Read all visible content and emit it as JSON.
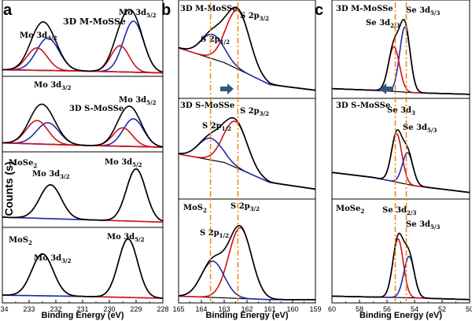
{
  "chart_data": {
    "type": "line",
    "y_label": "Counts (s)",
    "panels": [
      {
        "letter": "a",
        "xlabel": "Binding Energy (eV)",
        "xlim": [
          234,
          228
        ],
        "ticks": [
          "234",
          "233",
          "232",
          "231",
          "230",
          "229",
          "228"
        ],
        "tick_values": [
          234,
          233,
          232,
          231,
          230,
          229,
          228
        ],
        "subplots": [
          {
            "sample": "3D M-MoSSe",
            "ylim": [
              0,
              1.15
            ],
            "baseline": [
              [
                234,
                0.08
              ],
              [
                231,
                0.06
              ],
              [
                228,
                0.03
              ]
            ],
            "peaks": [
              {
                "name": "Mo 3d5/2 blue",
                "color": "#1f2ca8",
                "center": 229.1,
                "amp": 0.82,
                "sigma": 0.38
              },
              {
                "name": "Mo 3d3/2 blue",
                "color": "#1f2ca8",
                "center": 232.3,
                "amp": 0.52,
                "sigma": 0.42
              },
              {
                "name": "Mo 3d5/2 red",
                "color": "#d0101a",
                "center": 229.6,
                "amp": 0.42,
                "sigma": 0.34
              },
              {
                "name": "Mo 3d3/2 red",
                "color": "#d0101a",
                "center": 232.7,
                "amp": 0.36,
                "sigma": 0.38
              }
            ]
          },
          {
            "sample": "3D S-MoSSe",
            "ylim": [
              0,
              1.15
            ],
            "baseline": [
              [
                234,
                0.12
              ],
              [
                231,
                0.08
              ],
              [
                228,
                0.05
              ]
            ],
            "peaks": [
              {
                "name": "Mo 3d5/2 blue",
                "color": "#1f2ca8",
                "center": 229.1,
                "amp": 0.45,
                "sigma": 0.38
              },
              {
                "name": "Mo 3d3/2 blue",
                "color": "#1f2ca8",
                "center": 232.3,
                "amp": 0.35,
                "sigma": 0.42
              },
              {
                "name": "Mo 3d5/2 red",
                "color": "#d0101a",
                "center": 229.5,
                "amp": 0.3,
                "sigma": 0.36
              },
              {
                "name": "Mo 3d3/2 red",
                "color": "#d0101a",
                "center": 232.7,
                "amp": 0.38,
                "sigma": 0.4
              }
            ]
          },
          {
            "sample": "MoSe2",
            "ylim": [
              0,
              1.15
            ],
            "baseline": [
              [
                234,
                0.14
              ],
              [
                231,
                0.1
              ],
              [
                228,
                0.06
              ]
            ],
            "peaks": [
              {
                "name": "Mo 3d5/2",
                "color": "#1f2ca8",
                "center": 229.0,
                "amp": 0.85,
                "sigma": 0.36
              },
              {
                "name": "Mo 3d3/2",
                "color": "#d0101a",
                "center": 232.2,
                "amp": 0.55,
                "sigma": 0.4
              }
            ]
          },
          {
            "sample": "MoS2",
            "ylim": [
              0,
              1.15
            ],
            "baseline": [
              [
                234,
                0.1
              ],
              [
                231,
                0.08
              ],
              [
                228,
                0.05
              ]
            ],
            "peaks": [
              {
                "name": "Mo 3d5/2",
                "color": "#1f2ca8",
                "center": 229.3,
                "amp": 0.95,
                "sigma": 0.36
              },
              {
                "name": "Mo 3d3/2",
                "color": "#d0101a",
                "center": 232.5,
                "amp": 0.68,
                "sigma": 0.4
              }
            ]
          }
        ]
      },
      {
        "letter": "b",
        "xlabel": "Binding Energy (eV)",
        "xlim": [
          165,
          159
        ],
        "ticks": [
          "165",
          "164",
          "163",
          "162",
          "161",
          "160",
          "159"
        ],
        "tick_values": [
          165,
          164,
          163,
          162,
          161,
          160,
          159
        ],
        "ref_lines": [
          163.6,
          162.4
        ],
        "subplots": [
          {
            "sample": "3D M-MoSSe",
            "ylim": [
              0,
              1.15
            ],
            "baseline": [
              [
                165,
                0.6
              ],
              [
                163,
                0.42
              ],
              [
                161,
                0.15
              ],
              [
                159,
                0.08
              ]
            ],
            "peaks": [
              {
                "name": "S 2p3/2",
                "color": "#d0101a",
                "center": 162.4,
                "amp": 0.72,
                "sigma": 0.52
              },
              {
                "name": "S 2p1/2",
                "color": "#1f2ca8",
                "center": 163.5,
                "amp": 0.3,
                "sigma": 0.5
              }
            ]
          },
          {
            "sample": "3D S-MoSSe",
            "ylim": [
              0,
              1.15
            ],
            "baseline": [
              [
                165,
                0.52
              ],
              [
                163,
                0.42
              ],
              [
                161,
                0.18
              ],
              [
                159,
                0.1
              ]
            ],
            "peaks": [
              {
                "name": "S 2p3/2",
                "color": "#d0101a",
                "center": 162.5,
                "amp": 0.55,
                "sigma": 0.52
              },
              {
                "name": "S 2p1/2",
                "color": "#1f2ca8",
                "center": 163.6,
                "amp": 0.26,
                "sigma": 0.52
              }
            ]
          },
          {
            "sample": "MoS2",
            "ylim": [
              0,
              1.15
            ],
            "baseline": [
              [
                165,
                0.06
              ],
              [
                163,
                0.04
              ],
              [
                161,
                0.02
              ],
              [
                159,
                0.02
              ]
            ],
            "peaks": [
              {
                "name": "S 2p3/2",
                "color": "#d0101a",
                "center": 162.3,
                "amp": 0.82,
                "sigma": 0.5
              },
              {
                "name": "S 2p1/2",
                "color": "#1f2ca8",
                "center": 163.5,
                "amp": 0.42,
                "sigma": 0.5
              }
            ]
          }
        ]
      },
      {
        "letter": "c",
        "xlabel": "Binding Energy (eV)",
        "xlim": [
          60,
          50
        ],
        "ticks": [
          "60",
          "58",
          "56",
          "54",
          "52",
          "50"
        ],
        "tick_values": [
          60,
          58,
          56,
          54,
          52,
          50
        ],
        "ref_lines": [
          55.4,
          54.6
        ],
        "subplots": [
          {
            "sample": "3D M-MoSSe",
            "ylim": [
              0,
              1.15
            ],
            "baseline": [
              [
                60,
                0.1
              ],
              [
                57,
                0.08
              ],
              [
                54,
                0.05
              ],
              [
                50,
                0.03
              ]
            ],
            "peaks": [
              {
                "name": "Se 3d5/2",
                "color": "#1f2ca8",
                "center": 54.7,
                "amp": 0.8,
                "sigma": 0.38
              },
              {
                "name": "Se 3d3/2",
                "color": "#d0101a",
                "center": 55.5,
                "amp": 0.55,
                "sigma": 0.4
              }
            ]
          },
          {
            "sample": "3D S-MoSSe",
            "ylim": [
              0,
              1.15
            ],
            "baseline": [
              [
                60,
                0.3
              ],
              [
                57,
                0.24
              ],
              [
                54,
                0.14
              ],
              [
                50,
                0.06
              ]
            ],
            "peaks": [
              {
                "name": "Se 3d3/2",
                "color": "#d0101a",
                "center": 55.3,
                "amp": 0.58,
                "sigma": 0.38
              },
              {
                "name": "Se 3d5/2",
                "color": "#1f2ca8",
                "center": 54.5,
                "amp": 0.38,
                "sigma": 0.38
              }
            ]
          },
          {
            "sample": "MoSe2",
            "ylim": [
              0,
              1.15
            ],
            "baseline": [
              [
                60,
                0.06
              ],
              [
                57,
                0.05
              ],
              [
                54,
                0.04
              ],
              [
                50,
                0.02
              ]
            ],
            "peaks": [
              {
                "name": "Se 3d3/2",
                "color": "#d0101a",
                "center": 55.2,
                "amp": 0.68,
                "sigma": 0.38
              },
              {
                "name": "Se 3d5/2",
                "color": "#1f2ca8",
                "center": 54.4,
                "amp": 0.48,
                "sigma": 0.38
              }
            ]
          }
        ]
      }
    ],
    "annotations": [
      {
        "panel": 0,
        "sub": 0,
        "text": "3D M-MoSSe",
        "sub_text": "",
        "tail": ""
      },
      {
        "panel": 0,
        "sub": 0,
        "text": "Mo 3d",
        "sub_text": "3/2",
        "tail": ""
      },
      {
        "panel": 0,
        "sub": 0,
        "text": "Mo 3d",
        "sub_text": "5/2",
        "tail": ""
      },
      {
        "panel": 0,
        "sub": 1,
        "text": "Mo 3d",
        "sub_text": "3/2",
        "tail": ""
      },
      {
        "panel": 0,
        "sub": 1,
        "text": "3D S-MoSSe",
        "sub_text": "",
        "tail": ""
      },
      {
        "panel": 0,
        "sub": 1,
        "text": "Mo 3d",
        "sub_text": "5/2",
        "tail": ""
      },
      {
        "panel": 0,
        "sub": 2,
        "text": "MoSe",
        "sub_text": "2",
        "tail": ""
      },
      {
        "panel": 0,
        "sub": 2,
        "text": "Mo 3d",
        "sub_text": "3/2",
        "tail": ""
      },
      {
        "panel": 0,
        "sub": 2,
        "text": "Mo 3d",
        "sub_text": "5/2",
        "tail": ""
      },
      {
        "panel": 0,
        "sub": 3,
        "text": "MoS",
        "sub_text": "2",
        "tail": ""
      },
      {
        "panel": 0,
        "sub": 3,
        "text": "Mo 3d",
        "sub_text": "3/2",
        "tail": ""
      },
      {
        "panel": 0,
        "sub": 3,
        "text": "Mo 3d",
        "sub_text": "5/2",
        "tail": ""
      },
      {
        "panel": 1,
        "sub": 0,
        "text": "3D M-MoSSe",
        "sub_text": "",
        "tail": ""
      },
      {
        "panel": 1,
        "sub": 0,
        "text": "S 2p",
        "sub_text": "3/2",
        "tail": ""
      },
      {
        "panel": 1,
        "sub": 0,
        "text": "S 2p",
        "sub_text": "1/2",
        "tail": ""
      },
      {
        "panel": 1,
        "sub": 1,
        "text": "3D S-MoSSe",
        "sub_text": "",
        "tail": ""
      },
      {
        "panel": 1,
        "sub": 1,
        "text": "S 2p",
        "sub_text": "3/2",
        "tail": ""
      },
      {
        "panel": 1,
        "sub": 1,
        "text": "S 2p",
        "sub_text": "1/2",
        "tail": ""
      },
      {
        "panel": 1,
        "sub": 2,
        "text": "MoS",
        "sub_text": "2",
        "tail": ""
      },
      {
        "panel": 1,
        "sub": 2,
        "text": "S 2p",
        "sub_text": "3/2",
        "tail": ""
      },
      {
        "panel": 1,
        "sub": 2,
        "text": "S 2p",
        "sub_text": "1/2",
        "tail": ""
      },
      {
        "panel": 2,
        "sub": 0,
        "text": "3D M-MoSSe",
        "sub_text": "",
        "tail": ""
      },
      {
        "panel": 2,
        "sub": 0,
        "text": "Se 3d",
        "sub_text": "5/3",
        "tail": ""
      },
      {
        "panel": 2,
        "sub": 0,
        "text": "Se 3d",
        "sub_text": "2/3",
        "tail": ""
      },
      {
        "panel": 2,
        "sub": 1,
        "text": "3D S-MoSSe",
        "sub_text": "",
        "tail": ""
      },
      {
        "panel": 2,
        "sub": 1,
        "text": "Se 3d",
        "sub_text": "3",
        "tail": ""
      },
      {
        "panel": 2,
        "sub": 1,
        "text": "Se 3d",
        "sub_text": "5/3",
        "tail": ""
      },
      {
        "panel": 2,
        "sub": 2,
        "text": "MoSe",
        "sub_text": "2",
        "tail": ""
      },
      {
        "panel": 2,
        "sub": 2,
        "text": "Se 3d",
        "sub_text": "2/3",
        "tail": ""
      },
      {
        "panel": 2,
        "sub": 2,
        "text": "Se 3d",
        "sub_text": "5/3",
        "tail": ""
      }
    ],
    "shift_arrows": [
      {
        "panel": 1,
        "direction": "right"
      },
      {
        "panel": 2,
        "direction": "left"
      }
    ],
    "colors": {
      "fit_red": "#d0101a",
      "fit_blue": "#1f2ca8",
      "envelope": "#000000",
      "ref_line": "#f08a1c",
      "arrow": "#2e5a80"
    }
  }
}
